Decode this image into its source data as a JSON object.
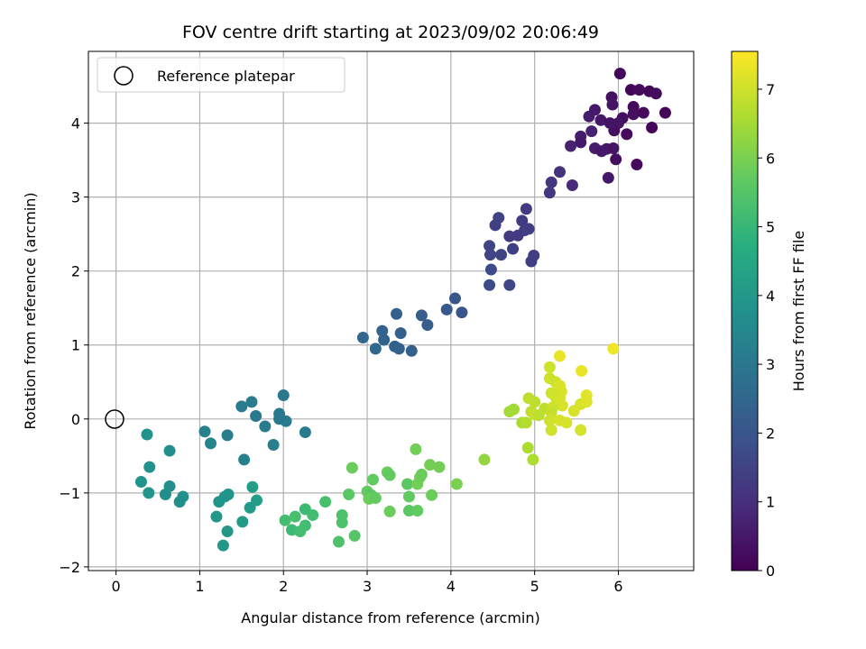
{
  "chart_data": {
    "type": "scatter",
    "title": "FOV centre drift starting at 2023/09/02 20:06:49",
    "xlabel": "Angular distance from reference (arcmin)",
    "ylabel": "Rotation from reference (arcmin)",
    "xlim": [
      -0.33,
      6.9
    ],
    "ylim": [
      -2.05,
      4.97
    ],
    "xticks": [
      0,
      1,
      2,
      3,
      4,
      5,
      6
    ],
    "yticks": [
      -2,
      -1,
      0,
      1,
      2,
      3,
      4
    ],
    "grid": true,
    "legend": {
      "position": "top-left",
      "entries": [
        "Reference platepar"
      ]
    },
    "colorbar": {
      "label": "Hours from first FF file",
      "colormap": "viridis",
      "range": [
        0,
        7.55
      ],
      "ticks": [
        0,
        1,
        2,
        3,
        4,
        5,
        6,
        7
      ]
    },
    "reference_point": {
      "x": 0,
      "y": 0
    },
    "points": [
      {
        "x": 6.02,
        "y": 4.67,
        "c": 0.1
      },
      {
        "x": 6.15,
        "y": 4.45,
        "c": 0.1
      },
      {
        "x": 6.25,
        "y": 4.45,
        "c": 0.2
      },
      {
        "x": 6.37,
        "y": 4.43,
        "c": 0.1
      },
      {
        "x": 6.45,
        "y": 4.4,
        "c": 0.2
      },
      {
        "x": 6.56,
        "y": 4.14,
        "c": 0.1
      },
      {
        "x": 6.18,
        "y": 4.22,
        "c": 0.2
      },
      {
        "x": 6.18,
        "y": 4.12,
        "c": 0.3
      },
      {
        "x": 6.3,
        "y": 4.14,
        "c": 0.2
      },
      {
        "x": 5.92,
        "y": 4.35,
        "c": 0.3
      },
      {
        "x": 5.93,
        "y": 4.25,
        "c": 0.4
      },
      {
        "x": 6.05,
        "y": 4.07,
        "c": 0.3
      },
      {
        "x": 6.0,
        "y": 4.0,
        "c": 0.4
      },
      {
        "x": 5.95,
        "y": 3.9,
        "c": 0.3
      },
      {
        "x": 6.1,
        "y": 3.85,
        "c": 0.2
      },
      {
        "x": 6.4,
        "y": 3.94,
        "c": 0.1
      },
      {
        "x": 5.65,
        "y": 4.09,
        "c": 0.6
      },
      {
        "x": 5.72,
        "y": 4.18,
        "c": 0.5
      },
      {
        "x": 5.79,
        "y": 4.04,
        "c": 0.5
      },
      {
        "x": 5.9,
        "y": 4.0,
        "c": 0.4
      },
      {
        "x": 5.55,
        "y": 3.82,
        "c": 0.6
      },
      {
        "x": 5.68,
        "y": 3.89,
        "c": 0.7
      },
      {
        "x": 5.55,
        "y": 3.74,
        "c": 0.5
      },
      {
        "x": 5.72,
        "y": 3.66,
        "c": 0.6
      },
      {
        "x": 5.86,
        "y": 3.65,
        "c": 0.5
      },
      {
        "x": 5.94,
        "y": 3.66,
        "c": 0.4
      },
      {
        "x": 5.97,
        "y": 3.51,
        "c": 0.3
      },
      {
        "x": 5.43,
        "y": 3.69,
        "c": 0.7
      },
      {
        "x": 6.22,
        "y": 3.44,
        "c": 0.2
      },
      {
        "x": 5.88,
        "y": 3.26,
        "c": 0.5
      },
      {
        "x": 5.8,
        "y": 3.62,
        "c": 0.5
      },
      {
        "x": 5.3,
        "y": 3.34,
        "c": 1.1
      },
      {
        "x": 5.2,
        "y": 3.2,
        "c": 1.2
      },
      {
        "x": 5.45,
        "y": 3.16,
        "c": 0.9
      },
      {
        "x": 5.18,
        "y": 3.06,
        "c": 1.2
      },
      {
        "x": 4.57,
        "y": 2.72,
        "c": 1.5
      },
      {
        "x": 4.53,
        "y": 2.62,
        "c": 1.4
      },
      {
        "x": 4.9,
        "y": 2.84,
        "c": 1.3
      },
      {
        "x": 4.85,
        "y": 2.68,
        "c": 1.3
      },
      {
        "x": 4.93,
        "y": 2.57,
        "c": 1.4
      },
      {
        "x": 4.88,
        "y": 2.55,
        "c": 1.4
      },
      {
        "x": 4.7,
        "y": 2.47,
        "c": 1.3
      },
      {
        "x": 4.8,
        "y": 2.48,
        "c": 1.3
      },
      {
        "x": 4.74,
        "y": 2.3,
        "c": 1.4
      },
      {
        "x": 4.46,
        "y": 2.34,
        "c": 1.5
      },
      {
        "x": 4.47,
        "y": 2.22,
        "c": 1.6
      },
      {
        "x": 4.6,
        "y": 2.22,
        "c": 1.5
      },
      {
        "x": 4.99,
        "y": 2.21,
        "c": 1.4
      },
      {
        "x": 4.96,
        "y": 2.13,
        "c": 1.4
      },
      {
        "x": 4.48,
        "y": 2.02,
        "c": 1.7
      },
      {
        "x": 4.46,
        "y": 1.81,
        "c": 1.7
      },
      {
        "x": 4.7,
        "y": 1.81,
        "c": 1.6
      },
      {
        "x": 4.05,
        "y": 1.63,
        "c": 2.0
      },
      {
        "x": 3.95,
        "y": 1.48,
        "c": 2.1
      },
      {
        "x": 4.13,
        "y": 1.44,
        "c": 2.0
      },
      {
        "x": 3.35,
        "y": 1.42,
        "c": 2.3
      },
      {
        "x": 3.65,
        "y": 1.4,
        "c": 2.2
      },
      {
        "x": 3.72,
        "y": 1.27,
        "c": 2.2
      },
      {
        "x": 3.18,
        "y": 1.19,
        "c": 2.4
      },
      {
        "x": 3.4,
        "y": 1.16,
        "c": 2.3
      },
      {
        "x": 2.95,
        "y": 1.1,
        "c": 2.5
      },
      {
        "x": 3.2,
        "y": 1.07,
        "c": 2.4
      },
      {
        "x": 3.33,
        "y": 0.98,
        "c": 2.3
      },
      {
        "x": 3.38,
        "y": 0.95,
        "c": 2.4
      },
      {
        "x": 3.1,
        "y": 0.95,
        "c": 2.5
      },
      {
        "x": 3.53,
        "y": 0.92,
        "c": 2.3
      },
      {
        "x": 2.0,
        "y": 0.32,
        "c": 3.0
      },
      {
        "x": 1.62,
        "y": 0.23,
        "c": 3.1
      },
      {
        "x": 1.5,
        "y": 0.17,
        "c": 3.1
      },
      {
        "x": 1.67,
        "y": 0.04,
        "c": 3.0
      },
      {
        "x": 1.95,
        "y": 0.07,
        "c": 3.0
      },
      {
        "x": 2.03,
        "y": -0.03,
        "c": 3.1
      },
      {
        "x": 1.95,
        "y": 0.0,
        "c": 3.0
      },
      {
        "x": 1.78,
        "y": -0.1,
        "c": 3.1
      },
      {
        "x": 2.26,
        "y": -0.18,
        "c": 3.1
      },
      {
        "x": 1.06,
        "y": -0.17,
        "c": 3.3
      },
      {
        "x": 1.33,
        "y": -0.22,
        "c": 3.2
      },
      {
        "x": 1.13,
        "y": -0.33,
        "c": 3.4
      },
      {
        "x": 1.88,
        "y": -0.35,
        "c": 3.2
      },
      {
        "x": 1.53,
        "y": -0.55,
        "c": 3.3
      },
      {
        "x": 0.37,
        "y": -0.21,
        "c": 3.8
      },
      {
        "x": 0.64,
        "y": -0.43,
        "c": 3.7
      },
      {
        "x": 0.4,
        "y": -0.65,
        "c": 3.8
      },
      {
        "x": 0.3,
        "y": -0.85,
        "c": 3.8
      },
      {
        "x": 0.64,
        "y": -0.91,
        "c": 3.7
      },
      {
        "x": 0.39,
        "y": -1.0,
        "c": 3.9
      },
      {
        "x": 0.59,
        "y": -1.02,
        "c": 3.7
      },
      {
        "x": 0.8,
        "y": -1.05,
        "c": 3.8
      },
      {
        "x": 0.76,
        "y": -1.12,
        "c": 3.7
      },
      {
        "x": 1.34,
        "y": -1.02,
        "c": 3.8
      },
      {
        "x": 1.3,
        "y": -1.05,
        "c": 3.9
      },
      {
        "x": 1.23,
        "y": -1.12,
        "c": 3.9
      },
      {
        "x": 1.63,
        "y": -0.92,
        "c": 4.2
      },
      {
        "x": 1.68,
        "y": -1.1,
        "c": 4.2
      },
      {
        "x": 1.6,
        "y": -1.2,
        "c": 4.1
      },
      {
        "x": 1.2,
        "y": -1.32,
        "c": 4.0
      },
      {
        "x": 1.51,
        "y": -1.39,
        "c": 4.1
      },
      {
        "x": 1.33,
        "y": -1.52,
        "c": 4.0
      },
      {
        "x": 1.28,
        "y": -1.71,
        "c": 4.0
      },
      {
        "x": 2.5,
        "y": -1.12,
        "c": 5.3
      },
      {
        "x": 2.26,
        "y": -1.22,
        "c": 5.1
      },
      {
        "x": 2.35,
        "y": -1.3,
        "c": 5.2
      },
      {
        "x": 2.14,
        "y": -1.32,
        "c": 5.3
      },
      {
        "x": 2.02,
        "y": -1.37,
        "c": 5.2
      },
      {
        "x": 2.26,
        "y": -1.44,
        "c": 5.2
      },
      {
        "x": 2.1,
        "y": -1.5,
        "c": 5.1
      },
      {
        "x": 2.2,
        "y": -1.52,
        "c": 5.2
      },
      {
        "x": 2.7,
        "y": -1.3,
        "c": 5.4
      },
      {
        "x": 2.7,
        "y": -1.4,
        "c": 5.4
      },
      {
        "x": 2.85,
        "y": -1.58,
        "c": 5.5
      },
      {
        "x": 2.66,
        "y": -1.66,
        "c": 5.4
      },
      {
        "x": 2.82,
        "y": -0.66,
        "c": 5.8
      },
      {
        "x": 2.78,
        "y": -1.02,
        "c": 5.6
      },
      {
        "x": 3.07,
        "y": -0.82,
        "c": 5.7
      },
      {
        "x": 3.0,
        "y": -0.98,
        "c": 5.7
      },
      {
        "x": 3.05,
        "y": -1.03,
        "c": 5.6
      },
      {
        "x": 3.02,
        "y": -1.08,
        "c": 5.8
      },
      {
        "x": 3.1,
        "y": -1.07,
        "c": 5.7
      },
      {
        "x": 3.24,
        "y": -0.72,
        "c": 5.8
      },
      {
        "x": 3.27,
        "y": -0.76,
        "c": 5.7
      },
      {
        "x": 3.27,
        "y": -1.25,
        "c": 5.8
      },
      {
        "x": 3.48,
        "y": -0.88,
        "c": 5.6
      },
      {
        "x": 3.5,
        "y": -1.05,
        "c": 5.7
      },
      {
        "x": 3.5,
        "y": -1.24,
        "c": 5.6
      },
      {
        "x": 3.6,
        "y": -1.24,
        "c": 5.7
      },
      {
        "x": 3.58,
        "y": -0.41,
        "c": 5.9
      },
      {
        "x": 3.6,
        "y": -0.88,
        "c": 5.9
      },
      {
        "x": 3.63,
        "y": -0.79,
        "c": 5.9
      },
      {
        "x": 3.65,
        "y": -0.75,
        "c": 5.8
      },
      {
        "x": 3.75,
        "y": -0.62,
        "c": 5.9
      },
      {
        "x": 3.77,
        "y": -1.03,
        "c": 5.8
      },
      {
        "x": 3.86,
        "y": -0.65,
        "c": 5.9
      },
      {
        "x": 4.07,
        "y": -0.88,
        "c": 6.0
      },
      {
        "x": 4.4,
        "y": -0.55,
        "c": 6.3
      },
      {
        "x": 4.7,
        "y": 0.1,
        "c": 6.5
      },
      {
        "x": 4.75,
        "y": 0.13,
        "c": 6.5
      },
      {
        "x": 4.85,
        "y": -0.05,
        "c": 6.6
      },
      {
        "x": 4.9,
        "y": -0.05,
        "c": 6.7
      },
      {
        "x": 4.93,
        "y": 0.28,
        "c": 6.8
      },
      {
        "x": 4.96,
        "y": 0.1,
        "c": 6.8
      },
      {
        "x": 5.0,
        "y": 0.06,
        "c": 6.9
      },
      {
        "x": 5.0,
        "y": 0.23,
        "c": 6.8
      },
      {
        "x": 5.12,
        "y": 0.14,
        "c": 6.8
      },
      {
        "x": 5.05,
        "y": 0.05,
        "c": 6.8
      },
      {
        "x": 4.92,
        "y": -0.39,
        "c": 6.6
      },
      {
        "x": 4.98,
        "y": -0.55,
        "c": 6.6
      },
      {
        "x": 5.18,
        "y": 0.7,
        "c": 7.0
      },
      {
        "x": 5.18,
        "y": 0.55,
        "c": 7.0
      },
      {
        "x": 5.25,
        "y": 0.5,
        "c": 7.0
      },
      {
        "x": 5.3,
        "y": 0.45,
        "c": 7.1
      },
      {
        "x": 5.32,
        "y": 0.37,
        "c": 7.1
      },
      {
        "x": 5.2,
        "y": 0.35,
        "c": 7.0
      },
      {
        "x": 5.25,
        "y": 0.3,
        "c": 7.0
      },
      {
        "x": 5.3,
        "y": 0.28,
        "c": 7.1
      },
      {
        "x": 5.33,
        "y": 0.18,
        "c": 7.1
      },
      {
        "x": 5.22,
        "y": 0.16,
        "c": 7.0
      },
      {
        "x": 5.2,
        "y": 0.09,
        "c": 6.9
      },
      {
        "x": 5.18,
        "y": -0.02,
        "c": 7.0
      },
      {
        "x": 5.2,
        "y": -0.15,
        "c": 7.0
      },
      {
        "x": 5.3,
        "y": -0.02,
        "c": 7.1
      },
      {
        "x": 5.38,
        "y": -0.05,
        "c": 7.1
      },
      {
        "x": 5.47,
        "y": 0.11,
        "c": 7.1
      },
      {
        "x": 5.55,
        "y": 0.2,
        "c": 7.1
      },
      {
        "x": 5.62,
        "y": 0.23,
        "c": 7.2
      },
      {
        "x": 5.62,
        "y": 0.32,
        "c": 7.2
      },
      {
        "x": 5.55,
        "y": -0.15,
        "c": 7.1
      },
      {
        "x": 5.3,
        "y": 0.85,
        "c": 7.3
      },
      {
        "x": 5.56,
        "y": 0.65,
        "c": 7.3
      },
      {
        "x": 5.94,
        "y": 0.95,
        "c": 7.4
      }
    ]
  }
}
